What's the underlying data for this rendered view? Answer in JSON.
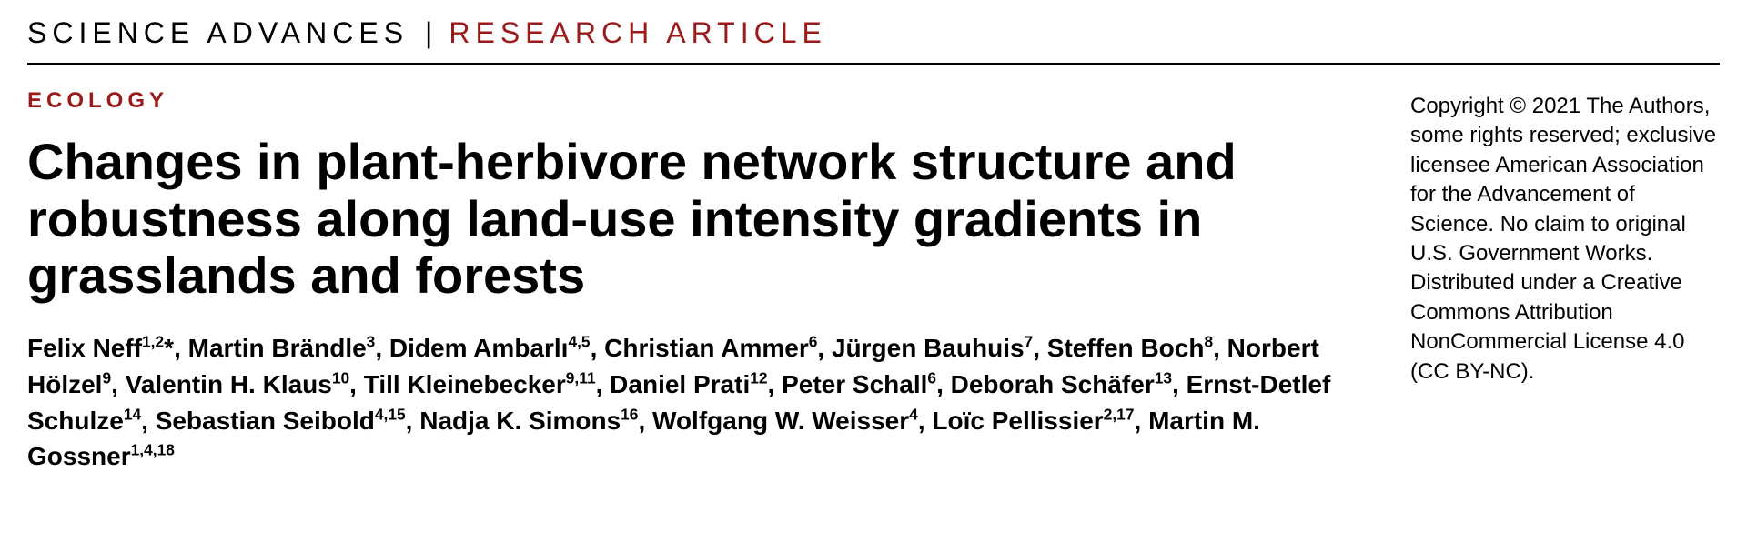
{
  "masthead": {
    "journal": "SCIENCE ADVANCES",
    "divider": "|",
    "article_type": "RESEARCH ARTICLE",
    "journal_color": "#000000",
    "article_type_color": "#9b1b1b"
  },
  "category": {
    "text": "ECOLOGY",
    "color": "#9b1b1b"
  },
  "title": "Changes in plant-herbivore network structure and robustness along land-use intensity gradients in grasslands and forests",
  "authors": [
    {
      "name": "Felix Neff",
      "aff": "1,2",
      "corresponding": true
    },
    {
      "name": "Martin Brändle",
      "aff": "3"
    },
    {
      "name": "Didem Ambarlı",
      "aff": "4,5"
    },
    {
      "name": "Christian Ammer",
      "aff": "6"
    },
    {
      "name": "Jürgen Bauhuis",
      "aff": "7"
    },
    {
      "name": "Steffen Boch",
      "aff": "8"
    },
    {
      "name": "Norbert Hölzel",
      "aff": "9"
    },
    {
      "name": "Valentin H. Klaus",
      "aff": "10"
    },
    {
      "name": "Till Kleinebecker",
      "aff": "9,11"
    },
    {
      "name": "Daniel Prati",
      "aff": "12"
    },
    {
      "name": "Peter Schall",
      "aff": "6"
    },
    {
      "name": "Deborah Schäfer",
      "aff": "13"
    },
    {
      "name": "Ernst-Detlef Schulze",
      "aff": "14"
    },
    {
      "name": "Sebastian Seibold",
      "aff": "4,15"
    },
    {
      "name": "Nadja K. Simons",
      "aff": "16"
    },
    {
      "name": "Wolfgang W. Weisser",
      "aff": "4"
    },
    {
      "name": "Loïc Pellissier",
      "aff": "2,17"
    },
    {
      "name": "Martin M. Gossner",
      "aff": "1,4,18"
    }
  ],
  "copyright": "Copyright © 2021 The Authors, some rights reserved; exclusive licensee American Association for the Advancement of Science. No claim to original U.S. Government Works. Distributed under a Creative Commons Attribution NonCommercial License 4.0 (CC BY-NC).",
  "typography": {
    "title_fontsize": 56,
    "title_weight": 700,
    "authors_fontsize": 28,
    "copyright_fontsize": 24,
    "masthead_fontsize": 32
  },
  "colors": {
    "text": "#000000",
    "accent": "#9b1b1b",
    "background": "#ffffff",
    "rule": "#000000"
  }
}
